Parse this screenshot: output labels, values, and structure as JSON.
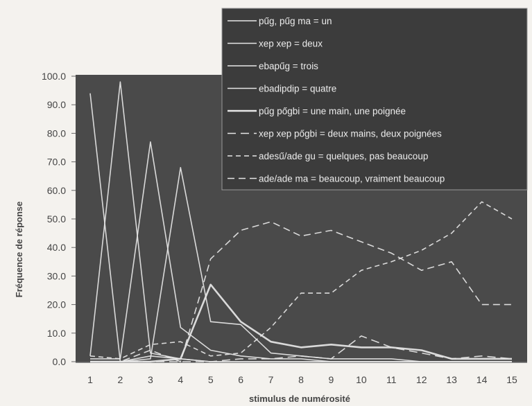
{
  "chart_data": {
    "type": "line",
    "title": "",
    "xlabel": "stimulus de numérosité",
    "ylabel": "Fréquence de réponse",
    "x": [
      1,
      2,
      3,
      4,
      5,
      6,
      7,
      8,
      9,
      10,
      11,
      12,
      13,
      14,
      15
    ],
    "x_tick_labels": [
      "1",
      "2",
      "3",
      "4",
      "5",
      "6",
      "7",
      "8",
      "9",
      "10",
      "11",
      "12",
      "13",
      "14",
      "15"
    ],
    "ylim": [
      0,
      100
    ],
    "y_tick_labels": [
      "0.0",
      "10.0",
      "20.0",
      "30.0",
      "40.0",
      "50.0",
      "60.0",
      "70.0",
      "80.0",
      "90.0",
      "100.0"
    ],
    "grid": false,
    "legend_position": "top-right",
    "colors": {
      "plot_background": "#4a4a4a",
      "legend_background": "#3c3c3c",
      "line": "#e6e6e6",
      "axis_text": "#444444",
      "page_background": "#f4f2ee"
    },
    "series": [
      {
        "name": "pűg, pűg ma = un",
        "style": "solid-thin",
        "values": [
          94,
          0,
          2,
          1,
          0,
          0,
          0,
          0,
          0,
          0,
          0,
          0,
          0,
          0,
          0
        ]
      },
      {
        "name": "xep xep = deux",
        "style": "solid-thin",
        "values": [
          2,
          98,
          3,
          1,
          0,
          0,
          0,
          0,
          0,
          0,
          0,
          0,
          0,
          0,
          0
        ]
      },
      {
        "name": "ebapűg = trois",
        "style": "solid-thin",
        "values": [
          1,
          1,
          77,
          12,
          4,
          2,
          1,
          1,
          0,
          0,
          0,
          0,
          0,
          0,
          0
        ]
      },
      {
        "name": "ebadipdip = quatre",
        "style": "solid-thin",
        "values": [
          0,
          0,
          1,
          68,
          14,
          13,
          3,
          2,
          1,
          1,
          1,
          0,
          0,
          0,
          0
        ]
      },
      {
        "name": "pűg pőgbi = une main, une poignée",
        "style": "solid-thick",
        "values": [
          0,
          0,
          0,
          1,
          27,
          14,
          7,
          5,
          6,
          5,
          5,
          4,
          1,
          1,
          1
        ]
      },
      {
        "name": "xep xep pőgbi = deux mains, deux poignées",
        "style": "dash-long",
        "values": [
          0,
          0,
          0,
          0,
          0,
          1,
          1,
          2,
          1,
          9,
          5,
          3,
          1,
          2,
          1
        ]
      },
      {
        "name": "adesű/ade gu = quelques, pas beaucoup",
        "style": "dash-short",
        "values": [
          2,
          1,
          6,
          7,
          2,
          3,
          12,
          24,
          24,
          32,
          35,
          39,
          45,
          56,
          50
        ]
      },
      {
        "name": "ade/ade ma = beaucoup, vraiment beaucoup",
        "style": "dash-medium",
        "values": [
          0,
          0,
          4,
          0,
          36,
          46,
          49,
          44,
          46,
          42,
          38,
          32,
          35,
          20,
          20
        ]
      }
    ]
  }
}
